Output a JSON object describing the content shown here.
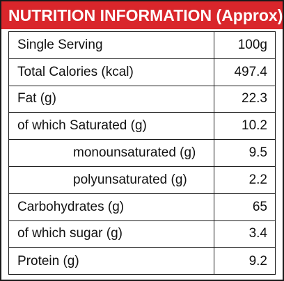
{
  "header": {
    "title": "NUTRITION INFORMATION (Approx)",
    "background": "#d9262b"
  },
  "rows": [
    {
      "label": "Single Serving",
      "value": "100g",
      "indent": false
    },
    {
      "label": "Total Calories (kcal)",
      "value": "497.4",
      "indent": false
    },
    {
      "label": "Fat (g)",
      "value": "22.3",
      "indent": false
    },
    {
      "label": "of which Saturated (g)",
      "value": "10.2",
      "indent": false
    },
    {
      "label": "monounsaturated (g)",
      "value": "9.5",
      "indent": true
    },
    {
      "label": "polyunsaturated (g)",
      "value": "2.2",
      "indent": true
    },
    {
      "label": "Carbohydrates (g)",
      "value": "65",
      "indent": false
    },
    {
      "label": "of which sugar (g)",
      "value": "3.4",
      "indent": false
    },
    {
      "label": "Protein (g)",
      "value": "9.2",
      "indent": false
    }
  ]
}
